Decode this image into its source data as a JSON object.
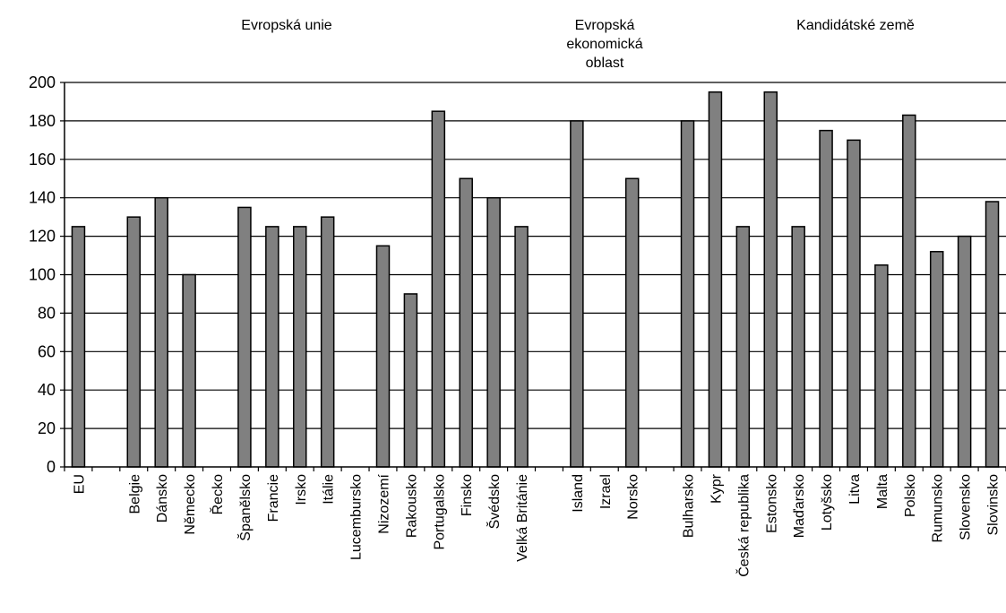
{
  "chart_data": {
    "type": "bar",
    "title": "",
    "xlabel": "",
    "ylabel": "",
    "ylim": [
      0,
      200
    ],
    "yticks": [
      0,
      20,
      40,
      60,
      80,
      100,
      120,
      140,
      160,
      180,
      200
    ],
    "grid": true,
    "bar_color": "#808080",
    "group_labels": [
      {
        "name": "eu",
        "text": "Evropská unie"
      },
      {
        "name": "eea",
        "text": "Evropská\nekonomická\noblast"
      },
      {
        "name": "candidates",
        "text": "Kandidátské země"
      }
    ],
    "categories": [
      "EU",
      "",
      "Belgie",
      "Dánsko",
      "Německo",
      "Řecko",
      "Španělsko",
      "Francie",
      "Irsko",
      "Itálie",
      "Lucembursko",
      "Nizozemí",
      "Rakousko",
      "Portugalsko",
      "Finsko",
      "Švédsko",
      "Velká Británie",
      "",
      "Island",
      "Izrael",
      "Norsko",
      "",
      "Bulharsko",
      "Kypr",
      "Česká republika",
      "Estonsko",
      "Maďarsko",
      "Lotyšsko",
      "Litva",
      "Malta",
      "Polsko",
      "Rumunsko",
      "Slovensko",
      "Slovinsko"
    ],
    "values": [
      125,
      null,
      130,
      140,
      100,
      null,
      135,
      125,
      125,
      130,
      null,
      115,
      90,
      185,
      150,
      140,
      125,
      null,
      180,
      null,
      150,
      null,
      180,
      195,
      125,
      195,
      125,
      175,
      170,
      105,
      183,
      112,
      120,
      138
    ]
  }
}
